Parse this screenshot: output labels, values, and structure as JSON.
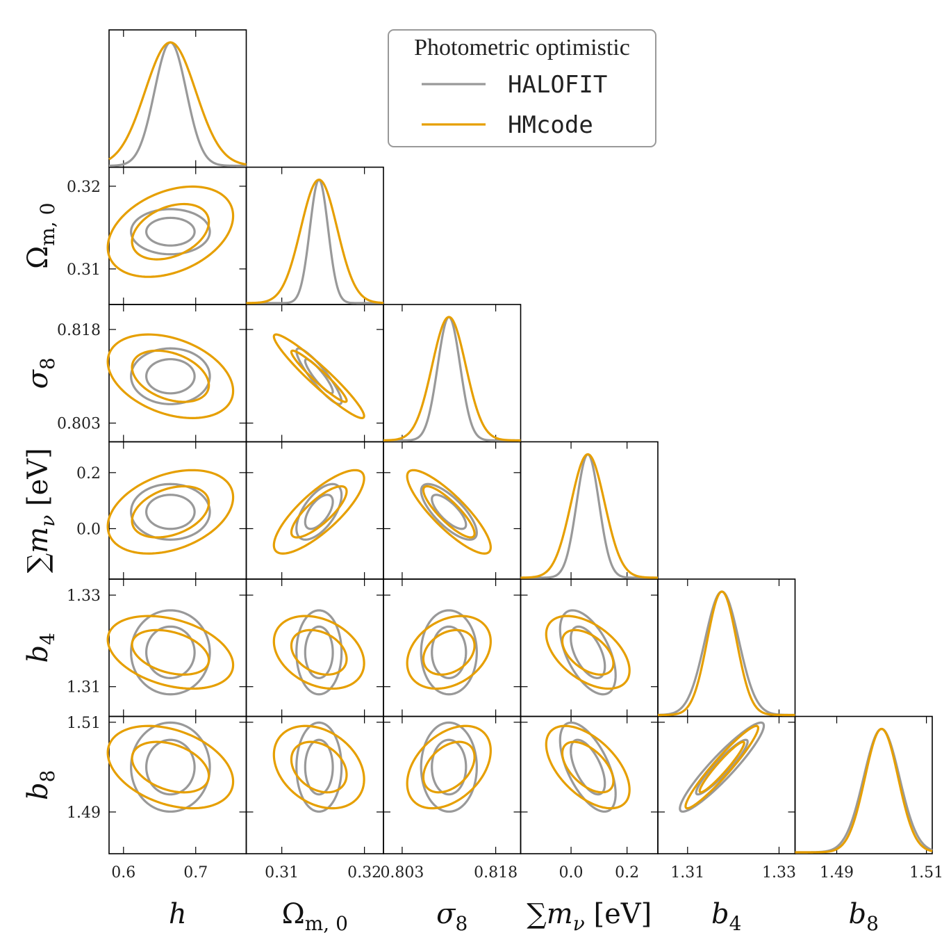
{
  "chart_data": {
    "type": "corner",
    "title": "",
    "legend": {
      "title": "Photometric optimistic",
      "placement": "top-right",
      "entries": [
        {
          "name": "HALOFIT",
          "color": "#999999"
        },
        {
          "name": "HMcode",
          "color": "#e69f00"
        }
      ]
    },
    "parameters": [
      {
        "key": "h",
        "label": "h",
        "range": [
          0.58,
          0.77
        ],
        "ticks": [
          0.6,
          0.7
        ],
        "tick_labels": [
          "0.6",
          "0.7"
        ],
        "center_halofit": 0.665,
        "center_hmcode": 0.665
      },
      {
        "key": "om",
        "label": "Ω_m,0",
        "range": [
          0.3057,
          0.3223
        ],
        "ticks": [
          0.31,
          0.32
        ],
        "tick_labels": [
          "0.31",
          "0.32"
        ],
        "center_halofit": 0.3145,
        "center_hmcode": 0.3145
      },
      {
        "key": "s8",
        "label": "σ_8",
        "range": [
          0.8,
          0.822
        ],
        "ticks": [
          0.803,
          0.818
        ],
        "tick_labels": [
          "0.803",
          "0.818"
        ],
        "center_halofit": 0.8105,
        "center_hmcode": 0.8105
      },
      {
        "key": "mnu",
        "label": "∑m_ν [eV]",
        "range": [
          -0.18,
          0.31
        ],
        "ticks": [
          0.0,
          0.2
        ],
        "tick_labels": [
          "0.0",
          "0.2"
        ],
        "center_halofit": 0.06,
        "center_hmcode": 0.06
      },
      {
        "key": "b4",
        "label": "b_4",
        "range": [
          1.3035,
          1.3335
        ],
        "ticks": [
          1.31,
          1.33
        ],
        "tick_labels": [
          "1.31",
          "1.33"
        ],
        "center_halofit": 1.3175,
        "center_hmcode": 1.3175
      },
      {
        "key": "b8",
        "label": "b_8",
        "range": [
          1.4807,
          1.5113
        ],
        "ticks": [
          1.49,
          1.51
        ],
        "tick_labels": [
          "1.49",
          "1.51"
        ],
        "center_halofit": 1.5,
        "center_hmcode": 1.5
      }
    ],
    "sigma_halofit": [
      0.022,
      0.0011,
      0.0018,
      0.04,
      0.0037,
      0.004
    ],
    "sigma_hmcode": [
      0.035,
      0.0022,
      0.0027,
      0.06,
      0.0032,
      0.0037
    ],
    "correlations_halofit": [
      [
        1.0,
        0.0,
        0.0,
        0.0,
        0.0,
        0.0
      ],
      [
        0.0,
        1.0,
        -0.9,
        0.6,
        0.0,
        0.0
      ],
      [
        0.0,
        -0.9,
        1.0,
        -0.75,
        0.0,
        0.0
      ],
      [
        0.0,
        0.6,
        -0.75,
        1.0,
        -0.55,
        -0.6
      ],
      [
        0.0,
        0.0,
        0.0,
        -0.55,
        1.0,
        0.93
      ],
      [
        0.0,
        0.0,
        0.0,
        -0.6,
        0.93,
        1.0
      ]
    ],
    "correlations_hmcode": [
      [
        1.0,
        0.35,
        -0.35,
        0.35,
        -0.35,
        -0.35
      ],
      [
        0.35,
        1.0,
        -0.95,
        0.8,
        -0.3,
        -0.3
      ],
      [
        -0.35,
        -0.95,
        1.0,
        -0.85,
        0.3,
        0.4
      ],
      [
        0.35,
        0.8,
        -0.85,
        1.0,
        -0.5,
        -0.55
      ],
      [
        -0.35,
        -0.3,
        0.3,
        -0.5,
        1.0,
        0.95
      ],
      [
        -0.35,
        -0.3,
        0.4,
        -0.55,
        0.95,
        1.0
      ]
    ],
    "contour_levels_sigma": [
      1.52,
      2.48
    ]
  }
}
